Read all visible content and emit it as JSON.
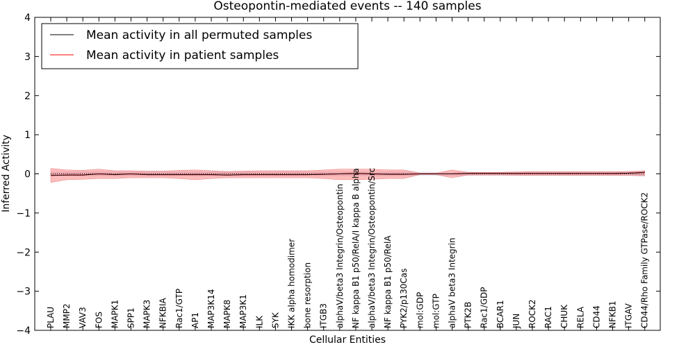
{
  "chart_data": {
    "type": "line",
    "title": "Osteopontin-mediated events -- 140 samples",
    "xlabel": "Cellular Entities",
    "ylabel": "Inferred Activity",
    "ylim": [
      -4,
      4
    ],
    "yticks": [
      "−4",
      "−3",
      "−2",
      "−1",
      "0",
      "1",
      "2",
      "3",
      "4"
    ],
    "legend_position": "top-left",
    "categories": [
      "PLAU",
      "MMP2",
      "VAV3",
      "FOS",
      "MAPK1",
      "SPP1",
      "MAPK3",
      "NFKBIA",
      "Rac1/GTP",
      "AP1",
      "MAP3K14",
      "MAPK8",
      "MAP3K1",
      "ILK",
      "SYK",
      "IKK alpha homodimer",
      "bone resorption",
      "ITGB3",
      "alphaV/beta3 Integrin/Osteopontin",
      "NF kappa B1 p50/RelA/I kappa B alpha",
      "alphaV/beta3 Integrin/Osteopontin/Src",
      "NF kappa B1 p50/RelA",
      "PYK2/p130Cas",
      "mol:GDP",
      "mol:GTP",
      "alphaV beta3 Integrin",
      "PTK2B",
      "Rac1/GDP",
      "BCAR1",
      "JUN",
      "ROCK2",
      "RAC1",
      "CHUK",
      "RELA",
      "CD44",
      "NFKB1",
      "ITGAV",
      "CD44/Rho Family GTPase/ROCK2"
    ],
    "series": [
      {
        "name": "Mean activity in all permuted samples",
        "color": "#000000",
        "style": "dotted",
        "values": [
          0,
          0,
          0,
          0,
          0,
          0,
          0,
          0,
          0,
          0,
          0,
          0,
          0,
          0,
          0,
          0,
          0,
          0,
          0,
          0,
          0,
          0,
          0,
          0,
          0,
          0,
          0,
          0,
          0,
          0,
          0,
          0,
          0,
          0,
          0,
          0,
          0,
          0
        ],
        "band_upper": [
          0.05,
          0.06,
          0.06,
          0.06,
          0.06,
          0.06,
          0.06,
          0.06,
          0.06,
          0.06,
          0.06,
          0.06,
          0.06,
          0.06,
          0.06,
          0.06,
          0.06,
          0.06,
          0.06,
          0.06,
          0.06,
          0.06,
          0.06,
          0.05,
          0.05,
          0.05,
          0.05,
          0.05,
          0.05,
          0.05,
          0.05,
          0.05,
          0.05,
          0.05,
          0.05,
          0.05,
          0.05,
          0.06
        ],
        "band_lower": [
          -0.05,
          -0.06,
          -0.06,
          -0.06,
          -0.06,
          -0.06,
          -0.06,
          -0.06,
          -0.06,
          -0.06,
          -0.06,
          -0.06,
          -0.06,
          -0.06,
          -0.06,
          -0.06,
          -0.06,
          -0.06,
          -0.06,
          -0.06,
          -0.06,
          -0.06,
          -0.06,
          -0.05,
          -0.05,
          -0.05,
          -0.05,
          -0.05,
          -0.05,
          -0.05,
          -0.05,
          -0.05,
          -0.05,
          -0.05,
          -0.05,
          -0.05,
          -0.05,
          -0.06
        ]
      },
      {
        "name": "Mean activity in patient samples",
        "color": "#ff0000",
        "values": [
          -0.04,
          -0.03,
          -0.03,
          0.0,
          -0.02,
          0.0,
          -0.02,
          -0.02,
          -0.02,
          -0.02,
          -0.02,
          -0.03,
          -0.02,
          -0.02,
          -0.02,
          -0.02,
          -0.02,
          -0.01,
          0.0,
          0.01,
          0.0,
          -0.01,
          -0.01,
          0.0,
          0.0,
          0.0,
          0.01,
          0.01,
          0.01,
          0.01,
          0.01,
          0.01,
          0.01,
          0.01,
          0.01,
          0.01,
          0.02,
          0.04
        ],
        "band_upper": [
          0.14,
          0.1,
          0.09,
          0.12,
          0.08,
          0.08,
          0.07,
          0.07,
          0.09,
          0.1,
          0.08,
          0.06,
          0.07,
          0.08,
          0.08,
          0.08,
          0.08,
          0.1,
          0.12,
          0.12,
          0.12,
          0.1,
          0.1,
          0.02,
          0.02,
          0.1,
          0.04,
          0.04,
          0.04,
          0.05,
          0.06,
          0.06,
          0.06,
          0.06,
          0.06,
          0.06,
          0.06,
          0.08
        ],
        "band_lower": [
          -0.22,
          -0.15,
          -0.14,
          -0.12,
          -0.12,
          -0.1,
          -0.1,
          -0.1,
          -0.12,
          -0.15,
          -0.12,
          -0.1,
          -0.1,
          -0.1,
          -0.1,
          -0.1,
          -0.1,
          -0.12,
          -0.15,
          -0.15,
          -0.14,
          -0.12,
          -0.12,
          -0.02,
          -0.02,
          -0.1,
          -0.03,
          -0.03,
          -0.03,
          -0.04,
          -0.04,
          -0.04,
          -0.04,
          -0.04,
          -0.04,
          -0.04,
          -0.04,
          -0.05
        ]
      }
    ]
  }
}
